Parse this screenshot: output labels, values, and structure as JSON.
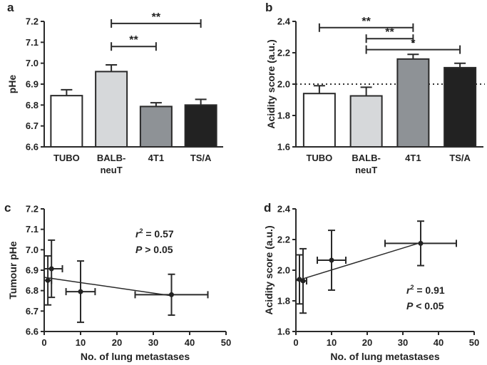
{
  "figure": {
    "panels": [
      "a",
      "b",
      "c",
      "d"
    ]
  },
  "chart_data": [
    {
      "panel": "a",
      "type": "bar",
      "categories": [
        "TUBO",
        "BALB-neuT",
        "4T1",
        "TS/A"
      ],
      "category_lines": [
        [
          "TUBO"
        ],
        [
          "BALB-",
          "neuT"
        ],
        [
          "4T1"
        ],
        [
          "TS/A"
        ]
      ],
      "values": [
        6.845,
        6.96,
        6.793,
        6.8
      ],
      "errors": [
        0.028,
        0.032,
        0.018,
        0.027
      ],
      "fills": [
        "#ffffff",
        "#d6d8da",
        "#8e9296",
        "#222222"
      ],
      "ylabel": "pHe",
      "ylim": [
        6.6,
        7.2
      ],
      "yticks": [
        "6.6",
        "6.7",
        "6.8",
        "6.9",
        "7.0",
        "7.1",
        "7.2"
      ],
      "significance": [
        {
          "from": 1,
          "to": 3,
          "level": 7.19,
          "label": "**"
        },
        {
          "from": 1,
          "to": 2,
          "level": 7.08,
          "label": "**"
        }
      ]
    },
    {
      "panel": "b",
      "type": "bar",
      "categories": [
        "TUBO",
        "BALB-neuT",
        "4T1",
        "TS/A"
      ],
      "category_lines": [
        [
          "TUBO"
        ],
        [
          "BALB-",
          "neuT"
        ],
        [
          "4T1"
        ],
        [
          "TS/A"
        ]
      ],
      "values": [
        1.94,
        1.925,
        2.16,
        2.105
      ],
      "errors": [
        0.05,
        0.055,
        0.03,
        0.028
      ],
      "fills": [
        "#ffffff",
        "#d6d8da",
        "#8e9296",
        "#222222"
      ],
      "ylabel": "Acidity score (a.u.)",
      "ylim": [
        1.6,
        2.4
      ],
      "yticks": [
        "1.6",
        "1.8",
        "2.0",
        "2.2",
        "2.4"
      ],
      "reference_line": 2.0,
      "significance": [
        {
          "from": 0,
          "to": 2,
          "level": 2.36,
          "label": "**"
        },
        {
          "from": 1,
          "to": 2,
          "level": 2.29,
          "label": "**"
        },
        {
          "from": 1,
          "to": 3,
          "level": 2.22,
          "label": "*"
        }
      ]
    },
    {
      "panel": "c",
      "type": "scatter",
      "points": [
        {
          "x": 1,
          "y": 6.85,
          "xerr": 1,
          "yerr": 0.12
        },
        {
          "x": 2,
          "y": 6.907,
          "xerr": 3,
          "yerr": 0.14
        },
        {
          "x": 10,
          "y": 6.795,
          "xerr": 4,
          "yerr": 0.15
        },
        {
          "x": 35,
          "y": 6.78,
          "xerr": 10,
          "yerr": 0.1
        }
      ],
      "fit_line": {
        "x": [
          0,
          35
        ],
        "y": [
          6.865,
          6.775
        ]
      },
      "xlabel": "No. of lung metastases",
      "ylabel": "Tumour pHe",
      "xlim": [
        0,
        50
      ],
      "ylim": [
        6.6,
        7.2
      ],
      "xticks": [
        "0",
        "10",
        "20",
        "30",
        "40",
        "50"
      ],
      "yticks": [
        "6.6",
        "6.7",
        "6.8",
        "6.9",
        "7.0",
        "7.1",
        "7.2"
      ],
      "stats": {
        "r_symbol": "r",
        "r_power": "2",
        "r_value": " = 0.57",
        "p_symbol": "P",
        "p_value": " > 0.05"
      }
    },
    {
      "panel": "d",
      "type": "scatter",
      "points": [
        {
          "x": 1,
          "y": 1.94,
          "xerr": 1,
          "yerr": 0.16
        },
        {
          "x": 2,
          "y": 1.93,
          "xerr": 1,
          "yerr": 0.21
        },
        {
          "x": 10,
          "y": 2.065,
          "xerr": 4,
          "yerr": 0.195
        },
        {
          "x": 35,
          "y": 2.175,
          "xerr": 10,
          "yerr": 0.145
        }
      ],
      "fit_line": {
        "x": [
          0,
          35
        ],
        "y": [
          1.93,
          2.18
        ]
      },
      "xlabel": "No. of lung metastases",
      "ylabel": "Acidity score (a.u.)",
      "xlim": [
        0,
        50
      ],
      "ylim": [
        1.6,
        2.4
      ],
      "xticks": [
        "0",
        "10",
        "20",
        "30",
        "40",
        "50"
      ],
      "yticks": [
        "1.6",
        "1.8",
        "2.0",
        "2.2",
        "2.4"
      ],
      "stats": {
        "r_symbol": "r",
        "r_power": "2",
        "r_value": " = 0.91",
        "p_symbol": "P",
        "p_value": " < 0.05"
      }
    }
  ]
}
